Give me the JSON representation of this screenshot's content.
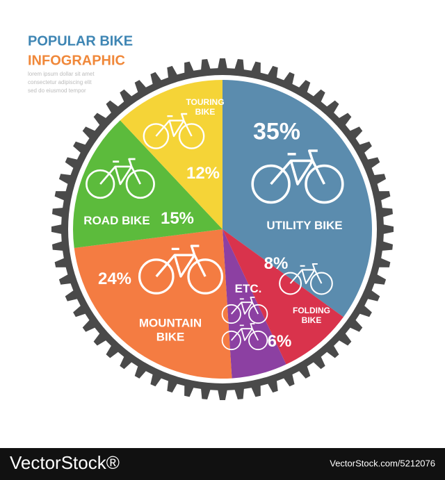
{
  "chart_data": {
    "type": "pie",
    "title": "POPULAR BIKE",
    "subtitle": "INFOGRAPHIC",
    "description": [
      "lorem ipsum dollar sit amet",
      "consectetur adipiscing elit",
      "sed do eiusmod tempor"
    ],
    "categories": [
      "UTILITY BIKE",
      "FOLDING BIKE",
      "ETC.",
      "MOUNTAIN BIKE",
      "ROAD BIKE",
      "TOURING BIKE"
    ],
    "values": [
      35,
      8,
      6,
      24,
      15,
      12
    ],
    "value_labels": [
      "35%",
      "8%",
      "6%",
      "24%",
      "15%",
      "12%"
    ],
    "colors": [
      "#5b8cae",
      "#d9334c",
      "#8c40a2",
      "#f47c42",
      "#5cbb3c",
      "#f5d437"
    ]
  },
  "footer": {
    "brand": "VectorStock®",
    "url": "VectorStock.com/5212076"
  }
}
